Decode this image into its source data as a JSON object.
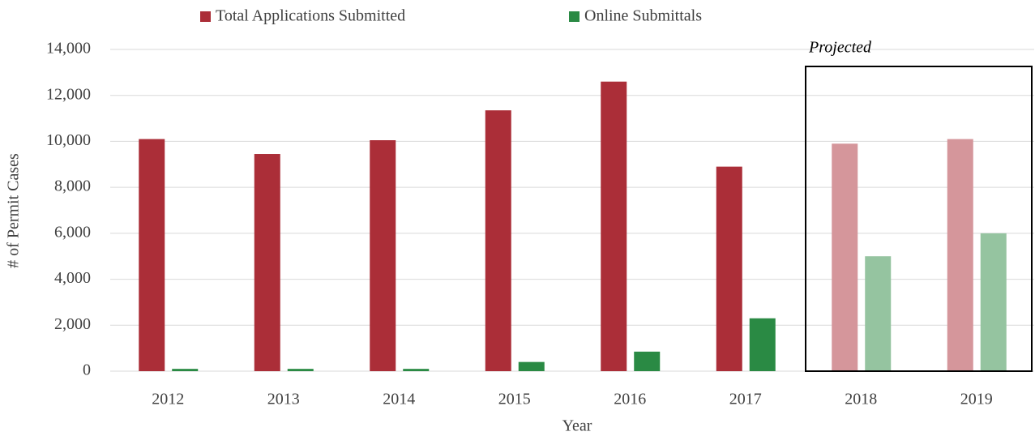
{
  "chart_data": {
    "type": "bar",
    "x_label": "Year",
    "y_label": "# of Permit Cases",
    "annotation": "Projected",
    "categories": [
      "2012",
      "2013",
      "2014",
      "2015",
      "2016",
      "2017",
      "2018",
      "2019"
    ],
    "series": [
      {
        "name": "Total Applications Submitted",
        "color": "#ab2e38",
        "colors": [
          "#ab2e38",
          "#ab2e38",
          "#ab2e38",
          "#ab2e38",
          "#ab2e38",
          "#ab2e38",
          "#d5969b",
          "#d5969b"
        ],
        "values": [
          10100,
          9450,
          10050,
          11350,
          12600,
          8900,
          9900,
          10100
        ]
      },
      {
        "name": "Online Submittals",
        "color": "#2a8a44",
        "colors": [
          "#2a8a44",
          "#2a8a44",
          "#2a8a44",
          "#2a8a44",
          "#2a8a44",
          "#2a8a44",
          "#95c4a0",
          "#95c4a0"
        ],
        "values": [
          100,
          100,
          100,
          400,
          850,
          2300,
          5000,
          6000
        ]
      }
    ],
    "ylim": [
      0,
      14000
    ],
    "yticks": [
      {
        "value": 0,
        "label": "0"
      },
      {
        "value": 2000,
        "label": "2,000"
      },
      {
        "value": 4000,
        "label": "4,000"
      },
      {
        "value": 6000,
        "label": "6,000"
      },
      {
        "value": 8000,
        "label": "8,000"
      },
      {
        "value": 10000,
        "label": "10,000"
      },
      {
        "value": 12000,
        "label": "12,000"
      },
      {
        "value": 14000,
        "label": "14,000"
      }
    ],
    "grid": true
  }
}
